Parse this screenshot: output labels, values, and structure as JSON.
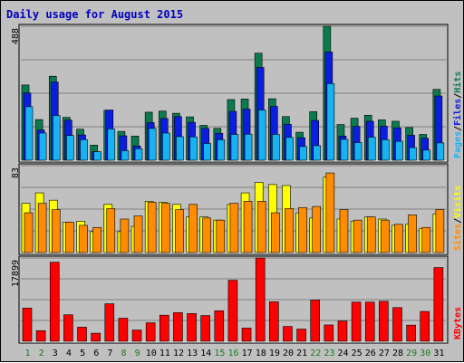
{
  "title": "Daily usage for August 2015",
  "colors": {
    "hits": "#0c7a4f",
    "files": "#0b1ee0",
    "pages": "#16b2f2",
    "visits": "#ffff00",
    "sites": "#ff8c00",
    "kbytes": "#ff0000",
    "weekend_label": "#1a7a1a",
    "weekday_label": "#000000",
    "title": "#0000c0",
    "background": "#c0c0c0"
  },
  "chart_data": [
    {
      "type": "bar",
      "panel": "hits-files-pages",
      "ymax_label": "488",
      "ylim": [
        0,
        488
      ],
      "categories": [
        "1",
        "2",
        "3",
        "4",
        "5",
        "6",
        "7",
        "8",
        "9",
        "10",
        "11",
        "12",
        "13",
        "14",
        "15",
        "16",
        "17",
        "18",
        "19",
        "20",
        "21",
        "22",
        "23",
        "24",
        "25",
        "26",
        "27",
        "28",
        "29",
        "30",
        "31"
      ],
      "legend_right": [
        "Pages",
        "Files",
        "Hits"
      ],
      "series": [
        {
          "name": "Hits",
          "values": [
            274,
            148,
            306,
            156,
            113,
            55,
            182,
            105,
            88,
            175,
            179,
            171,
            158,
            127,
            116,
            221,
            223,
            390,
            224,
            159,
            102,
            177,
            488,
            130,
            153,
            164,
            147,
            142,
            119,
            94,
            258
          ]
        },
        {
          "name": "Files",
          "values": [
            245,
            110,
            285,
            146,
            92,
            31,
            183,
            89,
            52,
            137,
            152,
            159,
            138,
            116,
            98,
            178,
            186,
            338,
            196,
            131,
            82,
            145,
            394,
            88,
            123,
            142,
            124,
            118,
            91,
            80,
            234
          ]
        },
        {
          "name": "Pages",
          "values": [
            195,
            99,
            163,
            90,
            75,
            31,
            114,
            35,
            42,
            116,
            99,
            86,
            85,
            61,
            75,
            94,
            95,
            183,
            94,
            83,
            50,
            53,
            279,
            76,
            64,
            84,
            75,
            69,
            46,
            37,
            63
          ]
        }
      ]
    },
    {
      "type": "bar",
      "panel": "visits-sites",
      "ymax_label": "83",
      "ylim": [
        0,
        83
      ],
      "categories": [
        "1",
        "2",
        "3",
        "4",
        "5",
        "6",
        "7",
        "8",
        "9",
        "10",
        "11",
        "12",
        "13",
        "14",
        "15",
        "16",
        "17",
        "18",
        "19",
        "20",
        "21",
        "22",
        "23",
        "24",
        "25",
        "26",
        "27",
        "28",
        "29",
        "30",
        "31"
      ],
      "legend_right": [
        "Sites",
        "Visits"
      ],
      "series": [
        {
          "name": "Visits",
          "values": [
            47,
            57,
            50,
            29,
            30,
            20,
            46,
            20,
            25,
            49,
            48,
            46,
            34,
            34,
            31,
            46,
            57,
            67,
            65,
            64,
            38,
            33,
            72,
            32,
            30,
            34,
            32,
            26,
            27,
            23,
            37
          ]
        },
        {
          "name": "Sites",
          "values": [
            38,
            47,
            41,
            29,
            26,
            24,
            42,
            32,
            35,
            48,
            47,
            41,
            46,
            33,
            31,
            47,
            49,
            49,
            38,
            42,
            43,
            44,
            76,
            41,
            31,
            34,
            31,
            27,
            36,
            24,
            41
          ]
        }
      ]
    },
    {
      "type": "bar",
      "panel": "kbytes",
      "ymax_label": "17899",
      "ylim": [
        0,
        17899
      ],
      "categories": [
        "1",
        "2",
        "3",
        "4",
        "5",
        "6",
        "7",
        "8",
        "9",
        "10",
        "11",
        "12",
        "13",
        "14",
        "15",
        "16",
        "17",
        "18",
        "19",
        "20",
        "21",
        "22",
        "23",
        "24",
        "25",
        "26",
        "27",
        "28",
        "29",
        "30",
        "31"
      ],
      "legend_right": [
        "KBytes"
      ],
      "series": [
        {
          "name": "KBytes",
          "values": [
            7140,
            2280,
            16990,
            5690,
            3030,
            1730,
            8060,
            4960,
            2420,
            3980,
            5610,
            6150,
            5960,
            5530,
            6560,
            13120,
            2840,
            17899,
            8480,
            3180,
            2620,
            8850,
            3510,
            4360,
            8420,
            8420,
            8600,
            7240,
            3470,
            6410,
            15840
          ]
        }
      ]
    }
  ]
}
